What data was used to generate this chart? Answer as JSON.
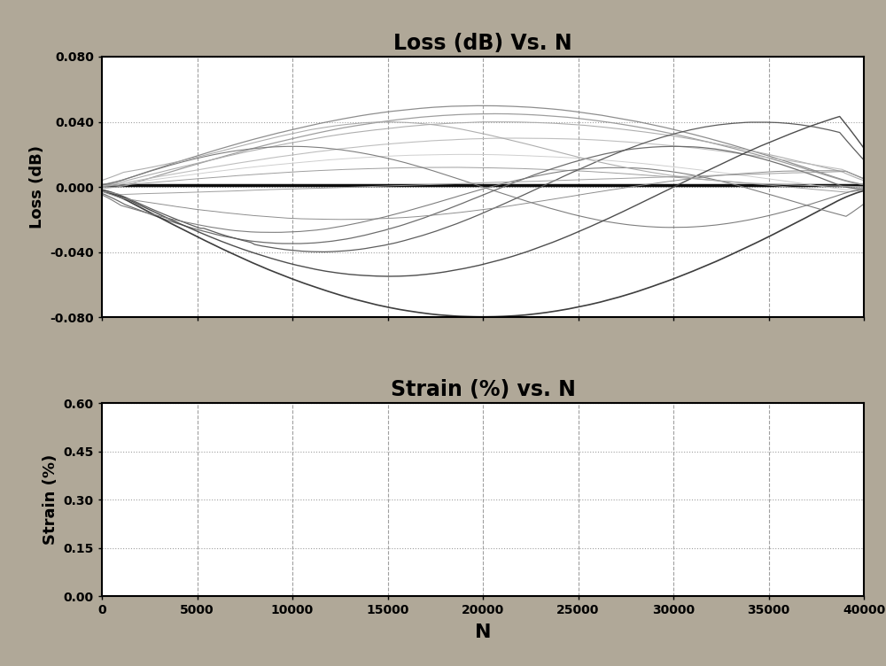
{
  "title1": "Loss (dB) Vs. N",
  "title2": "Strain (%) vs. N",
  "xlabel": "N",
  "ylabel1": "Loss (dB)",
  "ylabel2": "Strain (%)",
  "xlim": [
    0,
    40000
  ],
  "ylim1": [
    -0.08,
    0.08
  ],
  "ylim2": [
    0.0,
    0.6
  ],
  "yticks1": [
    -0.08,
    -0.04,
    0.0,
    0.04,
    0.08
  ],
  "yticks2": [
    0.0,
    0.15,
    0.3,
    0.45,
    0.6
  ],
  "xticks": [
    0,
    5000,
    10000,
    15000,
    20000,
    25000,
    30000,
    35000,
    40000
  ],
  "background_color": "#b0a898",
  "plot_bg_color": "#ffffff",
  "title_fontsize": 17,
  "axis_label_fontsize": 13,
  "tick_fontsize": 10
}
